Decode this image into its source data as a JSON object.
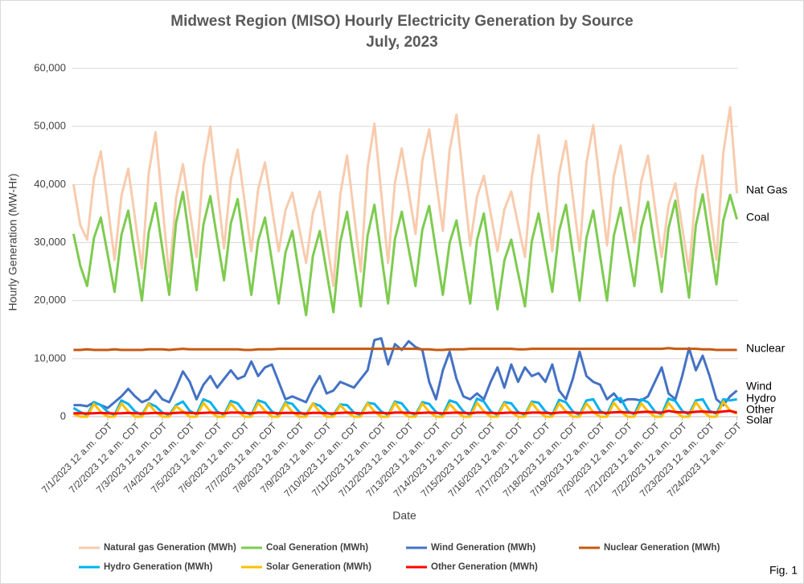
{
  "chart_data": {
    "type": "line",
    "title": "Midwest Region (MISO) Hourly Electricity Generation by Source",
    "subtitle": "July, 2023",
    "y_label": "Hourly Generation (MW-Hr)",
    "x_label": "Date",
    "figure_label": "Fig. 1",
    "annotations": [
      "Nat Gas",
      "Coal",
      "Nuclear",
      "Wind",
      "Hydro",
      "Other",
      "Solar"
    ],
    "ylim": [
      0,
      60000
    ],
    "yticks": [
      0,
      {
        "value": 10000,
        "label": "10,000"
      },
      {
        "value": 20000,
        "label": "20,000"
      },
      {
        "value": 30000,
        "label": "30,000"
      },
      {
        "value": 40000,
        "label": "40,000"
      },
      {
        "value": 50000,
        "label": "50,000"
      },
      {
        "value": 60000,
        "label": "60,000"
      }
    ],
    "xlim": [
      -31,
      553
    ],
    "xticks": [
      {
        "value": 0,
        "label": "7/1/2023 12 a.m. CDT"
      },
      {
        "value": 24,
        "label": "7/2/2023 12 a.m. CDT"
      },
      {
        "value": 48,
        "label": "7/3/2023 12 a.m. CDT"
      },
      {
        "value": 72,
        "label": "7/4/2023 12 a.m. CDT"
      },
      {
        "value": 96,
        "label": "7/5/2023 12 a.m. CDT"
      },
      {
        "value": 120,
        "label": "7/6/2023 12 a.m. CDT"
      },
      {
        "value": 144,
        "label": "7/7/2023 12 a.m. CDT"
      },
      {
        "value": 168,
        "label": "7/8/2023 12 a.m. CDT"
      },
      {
        "value": 192,
        "label": "7/9/2023 12 a.m. CDT"
      },
      {
        "value": 216,
        "label": "7/10/2023 12 a.m. CDT"
      },
      {
        "value": 240,
        "label": "7/11/2023 12 a.m. CDT"
      },
      {
        "value": 264,
        "label": "7/12/2023 12 a.m. CDT"
      },
      {
        "value": 288,
        "label": "7/13/2023 12 a.m. CDT"
      },
      {
        "value": 312,
        "label": "7/14/2023 12 a.m. CDT"
      },
      {
        "value": 336,
        "label": "7/15/2023 12 a.m. CDT"
      },
      {
        "value": 360,
        "label": "7/16/2023 12 a.m. CDT"
      },
      {
        "value": 384,
        "label": "7/17/2023 12 a.m. CDT"
      },
      {
        "value": 408,
        "label": "7/18/2023 12 a.m. CDT"
      },
      {
        "value": 432,
        "label": "7/19/2023 12 a.m. CDT"
      },
      {
        "value": 456,
        "label": "7/20/2023 12 a.m. CDT"
      },
      {
        "value": 480,
        "label": "7/21/2023 12 a.m. CDT"
      },
      {
        "value": 504,
        "label": "7/22/2023 12 a.m. CDT"
      },
      {
        "value": 528,
        "label": "7/23/2023 12 a.m. CDT"
      },
      {
        "value": 552,
        "label": "7/24/2023 12 a.m. CDT"
      }
    ],
    "grid": true,
    "legend": "bottom",
    "x": [
      -30,
      -24,
      -18,
      -12,
      -6,
      0,
      6,
      12,
      18,
      24,
      30,
      36,
      42,
      48,
      54,
      60,
      66,
      72,
      78,
      84,
      90,
      96,
      102,
      108,
      114,
      120,
      126,
      132,
      138,
      144,
      150,
      156,
      162,
      168,
      174,
      180,
      186,
      192,
      198,
      204,
      210,
      216,
      222,
      228,
      234,
      240,
      246,
      252,
      258,
      264,
      270,
      276,
      282,
      288,
      294,
      300,
      306,
      312,
      318,
      324,
      330,
      336,
      342,
      348,
      354,
      360,
      366,
      372,
      378,
      384,
      390,
      396,
      402,
      408,
      414,
      420,
      426,
      432,
      438,
      444,
      450,
      456,
      462,
      468,
      474,
      480,
      486,
      492,
      498,
      504,
      510,
      516,
      522,
      528,
      534,
      540,
      546,
      552
    ],
    "series": [
      {
        "name": "Natural gas Generation (MWh)",
        "color": "#f8cbad",
        "values": [
          40000,
          33000,
          30500,
          41000,
          45700,
          36300,
          27000,
          38000,
          42700,
          34100,
          25500,
          42000,
          49000,
          36500,
          24000,
          37700,
          43500,
          35500,
          27500,
          43200,
          50000,
          39500,
          29000,
          40900,
          46000,
          37200,
          28500,
          39200,
          43800,
          36100,
          28500,
          35600,
          38600,
          32500,
          26500,
          35100,
          38800,
          30600,
          22500,
          38300,
          45000,
          35000,
          25000,
          42900,
          50500,
          38500,
          26500,
          40300,
          46200,
          38800,
          31500,
          44100,
          49500,
          40700,
          32000,
          46000,
          52000,
          40700,
          29500,
          37900,
          41500,
          35000,
          28500,
          35700,
          38800,
          33100,
          27500,
          41200,
          48500,
          38500,
          28500,
          41800,
          47500,
          38000,
          28500,
          43700,
          50200,
          39800,
          29500,
          41500,
          46700,
          38300,
          30000,
          40500,
          45000,
          36200,
          27500,
          36400,
          40200,
          32600,
          25000,
          39000,
          45000,
          36000,
          27000,
          45400,
          53300,
          38500
        ]
      },
      {
        "name": "Coal Generation (MWh)",
        "color": "#7ecb4f",
        "values": [
          31500,
          26000,
          22500,
          30800,
          34300,
          27900,
          21500,
          31300,
          35500,
          27700,
          20000,
          31800,
          36800,
          28900,
          21000,
          33400,
          38700,
          30200,
          21800,
          33100,
          38000,
          30700,
          23500,
          33300,
          37500,
          29200,
          21000,
          30300,
          34300,
          26900,
          19500,
          28300,
          32000,
          24700,
          17500,
          27700,
          32000,
          25000,
          18000,
          30100,
          35300,
          27100,
          19000,
          31200,
          36500,
          28000,
          19500,
          30600,
          35300,
          28900,
          22500,
          32200,
          36300,
          28600,
          21000,
          30000,
          33800,
          26600,
          19500,
          30400,
          35000,
          26700,
          18500,
          26900,
          30500,
          24700,
          19000,
          30200,
          35000,
          28200,
          21500,
          32000,
          36500,
          28200,
          20000,
          30800,
          35500,
          27700,
          20000,
          31200,
          36000,
          29200,
          22500,
          32600,
          37000,
          29200,
          21500,
          32500,
          37200,
          28900,
          20500,
          33000,
          38300,
          30500,
          22800,
          33800,
          38200,
          34000
        ]
      },
      {
        "name": "Wind Generation (MWh)",
        "color": "#4472c4",
        "values": [
          2000,
          2000,
          1800,
          2500,
          2000,
          1500,
          2500,
          3500,
          4800,
          3500,
          2500,
          3000,
          4500,
          3000,
          2500,
          5000,
          7800,
          6000,
          3000,
          5500,
          7000,
          5000,
          6500,
          8000,
          6500,
          7000,
          9500,
          7000,
          8500,
          9000,
          6000,
          3000,
          3500,
          3000,
          2500,
          5000,
          7000,
          4000,
          4500,
          6000,
          5500,
          5000,
          6500,
          8000,
          13200,
          13500,
          9000,
          12500,
          11500,
          13000,
          12000,
          11500,
          6000,
          3000,
          8000,
          11200,
          6500,
          3500,
          3000,
          4000,
          3000,
          6000,
          8500,
          5000,
          9000,
          6000,
          8500,
          7000,
          7500,
          6000,
          9000,
          4500,
          3000,
          6500,
          11200,
          7000,
          6000,
          5500,
          3000,
          4000,
          2500,
          3000,
          3000,
          2800,
          3500,
          6000,
          8500,
          4000,
          3000,
          7000,
          11800,
          8000,
          10500,
          7000,
          3000,
          2000,
          3500,
          4500
        ]
      },
      {
        "name": "Nuclear Generation (MWh)",
        "color": "#c55a11",
        "values": [
          11500,
          11500,
          11600,
          11500,
          11500,
          11500,
          11600,
          11500,
          11500,
          11500,
          11500,
          11600,
          11600,
          11600,
          11500,
          11600,
          11700,
          11600,
          11600,
          11600,
          11600,
          11600,
          11600,
          11600,
          11600,
          11500,
          11500,
          11600,
          11600,
          11600,
          11700,
          11700,
          11700,
          11700,
          11700,
          11700,
          11700,
          11700,
          11700,
          11700,
          11700,
          11700,
          11700,
          11700,
          11700,
          11700,
          11700,
          11700,
          11700,
          11700,
          11700,
          11600,
          11600,
          11500,
          11500,
          11600,
          11600,
          11600,
          11700,
          11700,
          11700,
          11700,
          11700,
          11700,
          11700,
          11600,
          11600,
          11700,
          11700,
          11700,
          11700,
          11700,
          11700,
          11700,
          11700,
          11700,
          11700,
          11700,
          11700,
          11700,
          11700,
          11700,
          11700,
          11700,
          11700,
          11700,
          11700,
          11800,
          11700,
          11700,
          11700,
          11700,
          11600,
          11600,
          11500,
          11500,
          11500,
          11500
        ]
      },
      {
        "name": "Hydro Generation (MWh)",
        "color": "#00b0f0",
        "values": [
          1500,
          800,
          300,
          2500,
          2000,
          800,
          300,
          2800,
          2200,
          900,
          300,
          2300,
          1800,
          700,
          300,
          2000,
          2600,
          1000,
          400,
          3000,
          2500,
          900,
          300,
          2700,
          2300,
          800,
          300,
          2800,
          2400,
          900,
          300,
          2500,
          2200,
          800,
          300,
          2300,
          1900,
          700,
          300,
          2100,
          2000,
          700,
          300,
          2400,
          2200,
          900,
          300,
          2600,
          2300,
          800,
          300,
          2500,
          2200,
          800,
          300,
          2800,
          2400,
          900,
          300,
          3100,
          2600,
          900,
          300,
          2500,
          2300,
          800,
          300,
          2600,
          2400,
          900,
          300,
          2900,
          2500,
          900,
          300,
          2800,
          3000,
          1000,
          400,
          2900,
          3200,
          1000,
          400,
          3000,
          2500,
          900,
          400,
          3100,
          2700,
          1000,
          400,
          2800,
          3000,
          1000,
          500,
          3000,
          2800,
          3000
        ]
      },
      {
        "name": "Solar Generation (MWh)",
        "color": "#ffc000",
        "values": [
          500,
          0,
          0,
          2200,
          800,
          0,
          0,
          2300,
          900,
          0,
          0,
          2200,
          800,
          0,
          0,
          1800,
          900,
          0,
          0,
          2400,
          900,
          0,
          0,
          2300,
          900,
          0,
          0,
          2400,
          1000,
          0,
          0,
          2300,
          800,
          0,
          0,
          2300,
          800,
          0,
          0,
          2000,
          700,
          0,
          0,
          2300,
          900,
          0,
          0,
          2400,
          800,
          0,
          0,
          2300,
          800,
          0,
          0,
          2200,
          900,
          0,
          0,
          2400,
          900,
          0,
          0,
          2300,
          800,
          0,
          0,
          2400,
          900,
          0,
          0,
          2300,
          900,
          0,
          0,
          2300,
          800,
          0,
          0,
          2400,
          900,
          0,
          0,
          2300,
          900,
          0,
          0,
          2400,
          900,
          0,
          0,
          2500,
          900,
          0,
          0,
          2600,
          1000,
          500
        ]
      },
      {
        "name": "Other Generation (MWh)",
        "color": "#ff0000",
        "values": [
          600,
          600,
          550,
          600,
          650,
          600,
          550,
          600,
          650,
          600,
          550,
          600,
          650,
          600,
          550,
          650,
          700,
          650,
          600,
          650,
          700,
          650,
          600,
          700,
          700,
          650,
          600,
          700,
          700,
          650,
          600,
          650,
          650,
          600,
          550,
          650,
          650,
          600,
          550,
          650,
          700,
          650,
          600,
          650,
          700,
          650,
          600,
          700,
          700,
          650,
          600,
          650,
          700,
          650,
          600,
          650,
          700,
          650,
          600,
          700,
          700,
          650,
          600,
          650,
          700,
          650,
          600,
          700,
          700,
          650,
          600,
          700,
          750,
          700,
          650,
          700,
          750,
          700,
          650,
          750,
          800,
          700,
          650,
          800,
          850,
          750,
          700,
          1000,
          800,
          750,
          700,
          850,
          900,
          800,
          750,
          900,
          1000,
          700
        ]
      }
    ]
  }
}
